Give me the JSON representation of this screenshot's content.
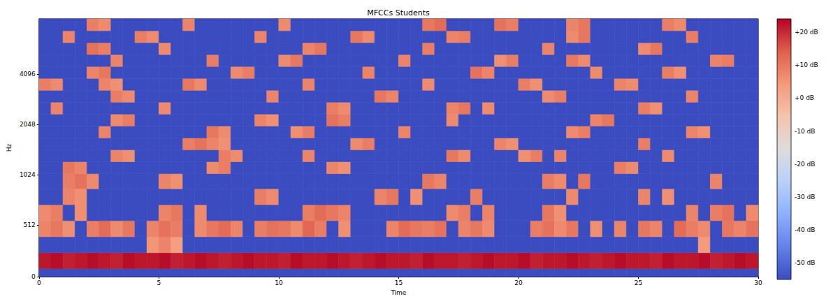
{
  "chart_data": {
    "type": "heatmap",
    "title": "MFCCs Students",
    "x_label": "Time",
    "y_label": "Hz",
    "xlim": [
      0,
      30
    ],
    "xticks": [
      0,
      5,
      10,
      15,
      20,
      25,
      30
    ],
    "ylim": [
      0,
      8783
    ],
    "yticks": [
      0,
      512,
      1024,
      2048,
      4096
    ],
    "log": "y",
    "grid": false,
    "x_edges": [
      0,
      0.5,
      1,
      1.5,
      2,
      2.5,
      3,
      3.5,
      4,
      4.5,
      5,
      5.5,
      6,
      6.5,
      7,
      7.5,
      8,
      8.5,
      9,
      9.5,
      10,
      10.5,
      11,
      11.5,
      12,
      12.5,
      13,
      13.5,
      14,
      14.5,
      15,
      15.5,
      16,
      16.5,
      17,
      17.5,
      18,
      18.5,
      19,
      19.5,
      20,
      20.5,
      21,
      21.5,
      22,
      22.5,
      23,
      23.5,
      24,
      24.5,
      25,
      25.5,
      26,
      26.5,
      27,
      27.5,
      28,
      28.5,
      29,
      29.5,
      30
    ],
    "y_edges": [
      0,
      80,
      239,
      398,
      558,
      717,
      876,
      1037,
      1223,
      1441,
      1698,
      2002,
      2359,
      2781,
      3277,
      3862,
      4552,
      5365,
      6323,
      7452,
      8783
    ],
    "values": [
      [
        -55,
        -55,
        -55,
        -55,
        -55,
        -55,
        -55,
        -55,
        -55,
        -55,
        -55,
        -55,
        -55,
        -55,
        -55,
        -55,
        -55,
        -55,
        -55,
        -55,
        -55,
        -55,
        -55,
        -55,
        -55,
        -55,
        -55,
        -55,
        -55,
        -55,
        -55,
        -55,
        -55,
        -55,
        -55,
        -55,
        -55,
        -55,
        -55,
        -55,
        -55,
        -55,
        -55,
        -55,
        -55,
        -55,
        -55,
        -55,
        -55,
        -55,
        -55,
        -55,
        -55,
        -55,
        -55,
        -55,
        -55,
        -55,
        -55,
        -55
      ],
      [
        22,
        23,
        21,
        22,
        23,
        22,
        21,
        23,
        22,
        22,
        23,
        21,
        22,
        23,
        22,
        21,
        22,
        23,
        22,
        22,
        21,
        23,
        22,
        22,
        23,
        22,
        21,
        22,
        23,
        22,
        22,
        21,
        23,
        22,
        22,
        21,
        22,
        23,
        22,
        22,
        23,
        21,
        22,
        22,
        23,
        22,
        21,
        22,
        23,
        22,
        22,
        21,
        23,
        22,
        22,
        23,
        21,
        22,
        23,
        22
      ],
      [
        -55,
        -55,
        -55,
        -55,
        -55,
        -55,
        -55,
        -55,
        -55,
        5,
        8,
        3,
        -55,
        -55,
        -55,
        -55,
        -55,
        -55,
        -55,
        -55,
        -55,
        -55,
        -55,
        -55,
        -55,
        -55,
        -55,
        -55,
        -55,
        -55,
        -55,
        -55,
        -55,
        -55,
        -55,
        -55,
        -55,
        -55,
        -55,
        -55,
        -55,
        -55,
        -55,
        -55,
        -55,
        -55,
        -55,
        -55,
        -55,
        -55,
        -55,
        -55,
        -55,
        -55,
        -55,
        4,
        -55,
        -55,
        -55,
        -55
      ],
      [
        8,
        10,
        6,
        -55,
        9,
        12,
        7,
        10,
        -55,
        8,
        11,
        9,
        -55,
        7,
        10,
        12,
        8,
        -55,
        9,
        11,
        10,
        7,
        13,
        9,
        -55,
        6,
        -55,
        -55,
        -55,
        8,
        12,
        10,
        9,
        11,
        -55,
        8,
        10,
        7,
        -55,
        -55,
        -55,
        9,
        11,
        7,
        10,
        -55,
        6,
        -55,
        8,
        -55,
        10,
        8,
        -55,
        12,
        9,
        7,
        -55,
        10,
        8,
        11
      ],
      [
        7,
        9,
        -55,
        6,
        -55,
        -55,
        -55,
        -55,
        -55,
        -55,
        8,
        10,
        -55,
        7,
        -55,
        -55,
        -55,
        -55,
        -55,
        -55,
        -55,
        -55,
        9,
        12,
        10,
        8,
        -55,
        -55,
        -55,
        -55,
        -55,
        -55,
        -55,
        -55,
        7,
        9,
        -55,
        8,
        -55,
        -55,
        -55,
        -55,
        10,
        6,
        -55,
        -55,
        -55,
        -55,
        -55,
        -55,
        -55,
        -55,
        -55,
        -55,
        8,
        -55,
        9,
        11,
        -55,
        7
      ],
      [
        -55,
        -55,
        8,
        6,
        -55,
        -55,
        -55,
        -55,
        -55,
        -55,
        -55,
        -55,
        -55,
        -55,
        -55,
        -55,
        -55,
        -55,
        9,
        7,
        -55,
        -55,
        -55,
        -55,
        -55,
        -55,
        -55,
        -55,
        8,
        10,
        -55,
        6,
        -55,
        -55,
        -55,
        -55,
        9,
        -55,
        -55,
        -55,
        -55,
        -55,
        -55,
        -55,
        7,
        -55,
        -55,
        -55,
        -55,
        -55,
        8,
        -55,
        6,
        -55,
        -55,
        -55,
        -55,
        -55,
        -55,
        -55
      ],
      [
        -55,
        -55,
        9,
        11,
        7,
        -55,
        -55,
        -55,
        -55,
        -55,
        8,
        6,
        -55,
        -55,
        -55,
        -55,
        -55,
        -55,
        -55,
        -55,
        -55,
        -55,
        -55,
        -55,
        -55,
        -55,
        -55,
        -55,
        -55,
        -55,
        -55,
        -55,
        10,
        8,
        -55,
        -55,
        -55,
        -55,
        -55,
        -55,
        -55,
        -55,
        9,
        7,
        -55,
        10,
        -55,
        -55,
        -55,
        -55,
        -55,
        -55,
        -55,
        -55,
        -55,
        -55,
        8,
        -55,
        -55,
        -55
      ],
      [
        -55,
        -55,
        10,
        8,
        -55,
        -55,
        -55,
        -55,
        -55,
        -55,
        -55,
        -55,
        -55,
        -55,
        7,
        9,
        -55,
        -55,
        -55,
        -55,
        -55,
        -55,
        -55,
        -55,
        8,
        6,
        -55,
        -55,
        -55,
        -55,
        -55,
        -55,
        -55,
        -55,
        -55,
        -55,
        -55,
        -55,
        -55,
        -55,
        -55,
        -55,
        -55,
        -55,
        -55,
        -55,
        -55,
        -55,
        9,
        7,
        -55,
        -55,
        -55,
        -55,
        -55,
        -55,
        -55,
        -55,
        -55,
        -55
      ],
      [
        -55,
        -55,
        -55,
        -55,
        -55,
        -55,
        8,
        6,
        -55,
        -55,
        -55,
        -55,
        -55,
        -55,
        -55,
        9,
        7,
        -55,
        -55,
        -55,
        -55,
        -55,
        8,
        -55,
        -55,
        -55,
        -55,
        -55,
        -55,
        -55,
        -55,
        -55,
        -55,
        -55,
        10,
        7,
        -55,
        -55,
        -55,
        -55,
        6,
        9,
        -55,
        8,
        -55,
        -55,
        -55,
        -55,
        -55,
        -55,
        -55,
        -55,
        7,
        -55,
        -55,
        -55,
        -55,
        -55,
        -55,
        -55
      ],
      [
        -55,
        -55,
        -55,
        -55,
        -55,
        -55,
        -55,
        -55,
        -55,
        -55,
        -55,
        -55,
        9,
        11,
        8,
        6,
        -55,
        -55,
        -55,
        -55,
        -55,
        -55,
        -55,
        -55,
        -55,
        -55,
        7,
        9,
        -55,
        -55,
        -55,
        -55,
        -55,
        -55,
        -55,
        -55,
        -55,
        -55,
        8,
        6,
        -55,
        -55,
        -55,
        -55,
        -55,
        -55,
        -55,
        -55,
        -55,
        -55,
        9,
        -55,
        -55,
        -55,
        -55,
        -55,
        -55,
        -55,
        -55,
        -55
      ],
      [
        -55,
        -55,
        -55,
        -55,
        -55,
        8,
        -55,
        -55,
        -55,
        -55,
        -55,
        -55,
        -55,
        -55,
        10,
        7,
        -55,
        -55,
        -55,
        -55,
        -55,
        6,
        9,
        -55,
        -55,
        -55,
        -55,
        -55,
        -55,
        -55,
        8,
        -55,
        -55,
        -55,
        -55,
        -55,
        -55,
        -55,
        -55,
        -55,
        -55,
        -55,
        -55,
        -55,
        7,
        9,
        -55,
        -55,
        -55,
        -55,
        -55,
        -55,
        -55,
        -55,
        8,
        6,
        -55,
        -55,
        -55,
        -55
      ],
      [
        -55,
        -55,
        -55,
        -55,
        -55,
        -55,
        7,
        9,
        -55,
        -55,
        -55,
        -55,
        -55,
        -55,
        -55,
        -55,
        -55,
        -55,
        8,
        6,
        -55,
        -55,
        -55,
        -55,
        11,
        9,
        -55,
        -55,
        -55,
        -55,
        -55,
        -55,
        -55,
        -55,
        7,
        -55,
        -55,
        -55,
        -55,
        -55,
        -55,
        -55,
        -55,
        -55,
        -55,
        -55,
        8,
        10,
        -55,
        -55,
        -55,
        -55,
        -55,
        -55,
        -55,
        -55,
        -55,
        -55,
        -55,
        -55
      ],
      [
        -55,
        8,
        -55,
        -55,
        -55,
        -55,
        -55,
        -55,
        -55,
        -55,
        7,
        -55,
        -55,
        -55,
        -55,
        -55,
        -55,
        -55,
        -55,
        -55,
        -55,
        -55,
        -55,
        -55,
        9,
        7,
        -55,
        -55,
        -55,
        -55,
        -55,
        -55,
        -55,
        -55,
        8,
        10,
        -55,
        7,
        -55,
        -55,
        -55,
        -55,
        -55,
        -55,
        -55,
        -55,
        -55,
        -55,
        -55,
        -55,
        9,
        6,
        -55,
        -55,
        -55,
        -55,
        -55,
        -55,
        -55,
        -55
      ],
      [
        -55,
        -55,
        -55,
        -55,
        -55,
        -55,
        9,
        7,
        -55,
        -55,
        -55,
        -55,
        -55,
        -55,
        -55,
        -55,
        -55,
        -55,
        -55,
        8,
        -55,
        -55,
        -55,
        -55,
        -55,
        -55,
        -55,
        -55,
        10,
        8,
        -55,
        -55,
        -55,
        -55,
        -55,
        -55,
        -55,
        -55,
        -55,
        -55,
        -55,
        -55,
        7,
        9,
        -55,
        -55,
        -55,
        -55,
        -55,
        -55,
        -55,
        -55,
        -55,
        -55,
        8,
        -55,
        -55,
        -55,
        -55,
        -55
      ],
      [
        9,
        7,
        -55,
        -55,
        -55,
        8,
        6,
        -55,
        -55,
        -55,
        -55,
        -55,
        10,
        7,
        -55,
        -55,
        -55,
        -55,
        -55,
        -55,
        -55,
        -55,
        8,
        -55,
        -55,
        -55,
        -55,
        -55,
        -55,
        -55,
        -55,
        -55,
        7,
        -55,
        -55,
        -55,
        -55,
        -55,
        -55,
        -55,
        9,
        6,
        -55,
        -55,
        -55,
        -55,
        -55,
        -55,
        8,
        7,
        -55,
        -55,
        -55,
        -55,
        -55,
        -55,
        -55,
        -55,
        -55,
        -55
      ],
      [
        -55,
        -55,
        -55,
        -55,
        8,
        10,
        -55,
        -55,
        -55,
        -55,
        -55,
        -55,
        -55,
        -55,
        -55,
        -55,
        7,
        9,
        -55,
        -55,
        -55,
        -55,
        -55,
        -55,
        -55,
        -55,
        -55,
        8,
        -55,
        -55,
        -55,
        -55,
        -55,
        -55,
        -55,
        -55,
        11,
        8,
        -55,
        -55,
        -55,
        -55,
        -55,
        -55,
        -55,
        -55,
        7,
        -55,
        -55,
        -55,
        -55,
        -55,
        9,
        6,
        -55,
        -55,
        -55,
        -55,
        -55,
        -55
      ],
      [
        -55,
        -55,
        -55,
        -55,
        -55,
        -55,
        8,
        -55,
        -55,
        -55,
        -55,
        -55,
        -55,
        -55,
        9,
        -55,
        -55,
        -55,
        -55,
        -55,
        7,
        10,
        -55,
        -55,
        -55,
        -55,
        -55,
        -55,
        -55,
        -55,
        8,
        -55,
        -55,
        -55,
        -55,
        -55,
        -55,
        -55,
        6,
        9,
        -55,
        -55,
        -55,
        -55,
        10,
        7,
        -55,
        -55,
        -55,
        -55,
        -55,
        -55,
        -55,
        -55,
        -55,
        -55,
        8,
        9,
        -55,
        -55
      ],
      [
        -55,
        -55,
        -55,
        -55,
        11,
        9,
        -55,
        -55,
        -55,
        -55,
        7,
        -55,
        -55,
        -55,
        -55,
        -55,
        -55,
        -55,
        -55,
        -55,
        -55,
        -55,
        8,
        10,
        -55,
        -55,
        -55,
        -55,
        -55,
        -55,
        -55,
        -55,
        9,
        -55,
        -55,
        -55,
        -55,
        -55,
        -55,
        -55,
        -55,
        -55,
        8,
        -55,
        -55,
        -55,
        -55,
        -55,
        -55,
        -55,
        7,
        10,
        -55,
        -55,
        -55,
        -55,
        -55,
        -55,
        -55,
        -55
      ],
      [
        -55,
        -55,
        8,
        -55,
        -55,
        -55,
        -55,
        -55,
        9,
        7,
        -55,
        -55,
        -55,
        -55,
        -55,
        -55,
        -55,
        -55,
        8,
        -55,
        -55,
        -55,
        -55,
        -55,
        -55,
        -55,
        10,
        7,
        -55,
        -55,
        -55,
        -55,
        -55,
        -55,
        8,
        9,
        -55,
        -55,
        -55,
        -55,
        -55,
        -55,
        -55,
        -55,
        7,
        10,
        -55,
        -55,
        -55,
        -55,
        -55,
        -55,
        -55,
        -55,
        9,
        -55,
        -55,
        -55,
        -55,
        -55
      ],
      [
        -55,
        -55,
        -55,
        -55,
        9,
        7,
        -55,
        -55,
        -55,
        -55,
        -55,
        -55,
        8,
        -55,
        -55,
        -55,
        -55,
        -55,
        -55,
        -55,
        7,
        -55,
        -55,
        -55,
        -55,
        -55,
        -55,
        -55,
        -55,
        -55,
        -55,
        -55,
        10,
        12,
        -55,
        -55,
        -55,
        -55,
        11,
        9,
        -55,
        -55,
        -55,
        -55,
        8,
        10,
        -55,
        -55,
        -55,
        -55,
        -55,
        -55,
        9,
        7,
        -55,
        -55,
        -55,
        -55,
        -55,
        -55
      ]
    ],
    "colorbar": {
      "range": [
        -55,
        24
      ],
      "ticks": [
        {
          "value": 20,
          "label": "+20 dB"
        },
        {
          "value": 10,
          "label": "+10 dB"
        },
        {
          "value": 0,
          "label": "+0 dB"
        },
        {
          "value": -10,
          "label": "-10 dB"
        },
        {
          "value": -20,
          "label": "-20 dB"
        },
        {
          "value": -30,
          "label": "-30 dB"
        },
        {
          "value": -40,
          "label": "-40 dB"
        },
        {
          "value": -50,
          "label": "-50 dB"
        }
      ]
    }
  }
}
